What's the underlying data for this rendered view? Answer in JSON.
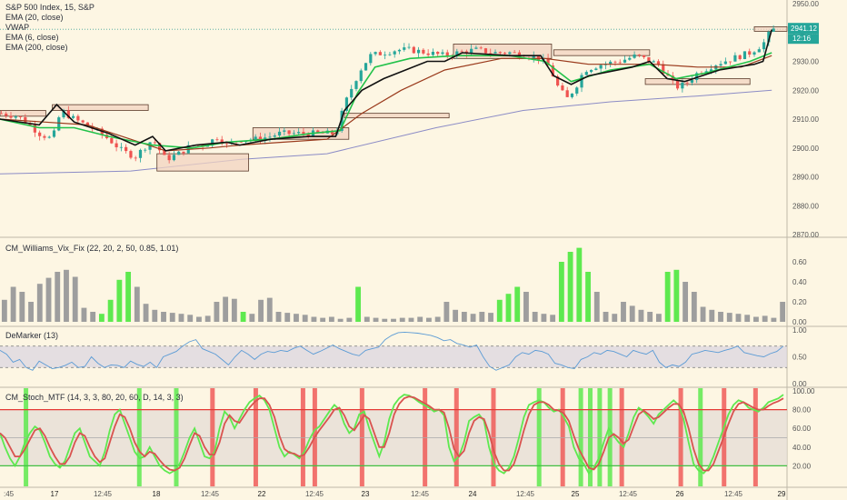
{
  "chart_data": [
    {
      "type": "candlestick",
      "panel": "price",
      "legend": [
        "S&P 500 Index, 15, S&P",
        "EMA (20, close)",
        "VWAP",
        "EMA (6, close)",
        "EMA (200, close)"
      ],
      "ylim": [
        2870,
        2950
      ],
      "y_ticks": [
        "2950.00",
        "2940.00",
        "2930.00",
        "2920.00",
        "2910.00",
        "2900.00",
        "2890.00",
        "2880.00",
        "2870.00"
      ],
      "last_price_label": "2941.12",
      "countdown_label": "12:16",
      "colors": {
        "up": "#26a69a",
        "down": "#ef5350",
        "ema20": "#22c24a",
        "vwap": "#111111",
        "ema6": "#9a3a1c",
        "ema200": "#8c8cc6",
        "zone_fill": "#f2d3c0",
        "zone_stroke": "#5a3a2a"
      },
      "x_ticks": [
        ":45",
        "17",
        "12:45",
        "18",
        "12:45",
        "22",
        "12:45",
        "23",
        "12:45",
        "24",
        "12:45",
        "25",
        "12:45",
        "26",
        "12:45",
        "29"
      ],
      "close_path": [
        [
          0,
          2912
        ],
        [
          8,
          2911
        ],
        [
          12,
          2909
        ],
        [
          18,
          2905
        ],
        [
          24,
          2903
        ],
        [
          28,
          2913
        ],
        [
          34,
          2910
        ],
        [
          42,
          2907
        ],
        [
          50,
          2903
        ],
        [
          56,
          2899
        ],
        [
          62,
          2897
        ],
        [
          70,
          2903
        ],
        [
          76,
          2896
        ],
        [
          82,
          2898
        ],
        [
          88,
          2901
        ],
        [
          94,
          2901
        ],
        [
          100,
          2904
        ],
        [
          104,
          2901
        ],
        [
          110,
          2903
        ],
        [
          118,
          2903
        ],
        [
          124,
          2904
        ],
        [
          128,
          2905
        ],
        [
          134,
          2905
        ],
        [
          142,
          2905
        ],
        [
          150,
          2905
        ],
        [
          154,
          2905
        ],
        [
          158,
          2915
        ],
        [
          162,
          2922
        ],
        [
          166,
          2928
        ],
        [
          170,
          2932
        ],
        [
          176,
          2933
        ],
        [
          182,
          2934
        ],
        [
          188,
          2934
        ],
        [
          196,
          2933
        ],
        [
          204,
          2932
        ],
        [
          210,
          2933
        ],
        [
          218,
          2934
        ],
        [
          226,
          2933
        ],
        [
          234,
          2933
        ],
        [
          242,
          2932
        ],
        [
          248,
          2931
        ],
        [
          252,
          2928
        ],
        [
          256,
          2921
        ],
        [
          260,
          2917
        ],
        [
          264,
          2921
        ],
        [
          268,
          2927
        ],
        [
          276,
          2929
        ],
        [
          284,
          2930
        ],
        [
          292,
          2932
        ],
        [
          298,
          2930
        ],
        [
          302,
          2929
        ],
        [
          306,
          2925
        ],
        [
          310,
          2921
        ],
        [
          314,
          2922
        ],
        [
          320,
          2926
        ],
        [
          328,
          2929
        ],
        [
          336,
          2931
        ],
        [
          344,
          2933
        ],
        [
          350,
          2936
        ],
        [
          354,
          2941
        ]
      ],
      "ema20_path": [
        [
          0,
          2910
        ],
        [
          18,
          2907
        ],
        [
          34,
          2907
        ],
        [
          50,
          2904
        ],
        [
          70,
          2901
        ],
        [
          88,
          2900
        ],
        [
          104,
          2902
        ],
        [
          124,
          2903
        ],
        [
          142,
          2905
        ],
        [
          156,
          2906
        ],
        [
          164,
          2919
        ],
        [
          172,
          2928
        ],
        [
          188,
          2931
        ],
        [
          210,
          2932
        ],
        [
          234,
          2932
        ],
        [
          250,
          2930
        ],
        [
          262,
          2923
        ],
        [
          280,
          2927
        ],
        [
          298,
          2929
        ],
        [
          310,
          2924
        ],
        [
          324,
          2926
        ],
        [
          344,
          2930
        ],
        [
          354,
          2933
        ]
      ],
      "vwap_path": [
        [
          0,
          2910
        ],
        [
          18,
          2908
        ],
        [
          26,
          2915
        ],
        [
          34,
          2909
        ],
        [
          50,
          2905
        ],
        [
          62,
          2901
        ],
        [
          70,
          2904
        ],
        [
          76,
          2899
        ],
        [
          90,
          2901
        ],
        [
          104,
          2902
        ],
        [
          110,
          2901
        ],
        [
          124,
          2903
        ],
        [
          142,
          2904
        ],
        [
          154,
          2904
        ],
        [
          158,
          2913
        ],
        [
          166,
          2920
        ],
        [
          176,
          2924
        ],
        [
          196,
          2930
        ],
        [
          204,
          2930
        ],
        [
          212,
          2933
        ],
        [
          234,
          2932
        ],
        [
          248,
          2932
        ],
        [
          254,
          2925
        ],
        [
          262,
          2922
        ],
        [
          270,
          2925
        ],
        [
          290,
          2928
        ],
        [
          298,
          2930
        ],
        [
          306,
          2924
        ],
        [
          314,
          2923
        ],
        [
          330,
          2927
        ],
        [
          346,
          2929
        ],
        [
          350,
          2930
        ],
        [
          354,
          2941
        ]
      ],
      "ema6_path": [
        [
          0,
          2910
        ],
        [
          20,
          2909
        ],
        [
          40,
          2908
        ],
        [
          60,
          2903
        ],
        [
          76,
          2899
        ],
        [
          96,
          2900
        ],
        [
          110,
          2901
        ],
        [
          130,
          2902
        ],
        [
          150,
          2903
        ],
        [
          166,
          2912
        ],
        [
          184,
          2920
        ],
        [
          204,
          2927
        ],
        [
          230,
          2931
        ],
        [
          250,
          2931
        ],
        [
          270,
          2929
        ],
        [
          300,
          2929
        ],
        [
          320,
          2928
        ],
        [
          340,
          2928
        ],
        [
          354,
          2932
        ]
      ],
      "ema200_path": [
        [
          0,
          2891
        ],
        [
          60,
          2892
        ],
        [
          110,
          2896
        ],
        [
          150,
          2898
        ],
        [
          200,
          2907
        ],
        [
          240,
          2913
        ],
        [
          280,
          2916
        ],
        [
          320,
          2918
        ],
        [
          354,
          2920
        ]
      ],
      "zones": [
        {
          "x0": 0,
          "x1": 21,
          "y0": 2913,
          "y1": 2911
        },
        {
          "x0": 24,
          "x1": 68,
          "y0": 2915,
          "y1": 2913
        },
        {
          "x0": 72,
          "x1": 114,
          "y0": 2898,
          "y1": 2892
        },
        {
          "x0": 116,
          "x1": 160,
          "y0": 2907,
          "y1": 2903
        },
        {
          "x0": 158,
          "x1": 206,
          "y0": 2912,
          "y1": 2911
        },
        {
          "x0": 208,
          "x1": 253,
          "y0": 2936,
          "y1": 2931
        },
        {
          "x0": 254,
          "x1": 298,
          "y0": 2934,
          "y1": 2932
        },
        {
          "x0": 296,
          "x1": 344,
          "y0": 2924,
          "y1": 2922
        },
        {
          "x0": 346,
          "x1": 361,
          "y0": 2942,
          "y1": 2941
        }
      ]
    },
    {
      "type": "bar",
      "panel": "vix_fix",
      "legend": "CM_Williams_Vix_Fix (22, 20, 2, 50, 0.85, 1.01)",
      "ylim": [
        0,
        0.8
      ],
      "y_ticks": [
        "0.60",
        "0.40",
        "0.20",
        "0.00"
      ],
      "colors": {
        "normal": "#9e9e9e",
        "spike": "#5ee94f"
      },
      "values": [
        0.22,
        0.35,
        0.3,
        0.2,
        0.38,
        0.44,
        0.5,
        0.52,
        0.45,
        0.14,
        0.1,
        0.08,
        0.22,
        0.42,
        0.5,
        0.35,
        0.18,
        0.12,
        0.1,
        0.09,
        0.08,
        0.07,
        0.05,
        0.06,
        0.2,
        0.25,
        0.23,
        0.1,
        0.08,
        0.22,
        0.24,
        0.1,
        0.09,
        0.08,
        0.07,
        0.05,
        0.04,
        0.05,
        0.03,
        0.04,
        0.35,
        0.05,
        0.04,
        0.03,
        0.03,
        0.04,
        0.04,
        0.05,
        0.04,
        0.05,
        0.2,
        0.12,
        0.1,
        0.08,
        0.1,
        0.09,
        0.22,
        0.28,
        0.35,
        0.3,
        0.1,
        0.08,
        0.07,
        0.6,
        0.7,
        0.74,
        0.5,
        0.3,
        0.1,
        0.08,
        0.2,
        0.16,
        0.12,
        0.1,
        0.08,
        0.5,
        0.52,
        0.4,
        0.3,
        0.15,
        0.12,
        0.1,
        0.09,
        0.08,
        0.07,
        0.05,
        0.06,
        0.04,
        0.2
      ],
      "spikes": [
        11,
        12,
        13,
        14,
        27,
        40,
        56,
        57,
        58,
        63,
        64,
        65,
        66,
        75,
        76
      ]
    },
    {
      "type": "line",
      "panel": "demarker",
      "legend": "DeMarker (13)",
      "ylim": [
        0,
        1
      ],
      "y_ticks": [
        "1.00",
        "0.50",
        "0.00"
      ],
      "band": [
        0.3,
        0.7
      ],
      "colors": {
        "line": "#5b9bd5",
        "band": "#d8d4e0"
      },
      "values": [
        0.62,
        0.55,
        0.4,
        0.45,
        0.3,
        0.25,
        0.42,
        0.35,
        0.28,
        0.3,
        0.34,
        0.4,
        0.3,
        0.32,
        0.5,
        0.38,
        0.3,
        0.35,
        0.34,
        0.3,
        0.42,
        0.36,
        0.32,
        0.4,
        0.3,
        0.5,
        0.55,
        0.6,
        0.7,
        0.78,
        0.82,
        0.65,
        0.6,
        0.55,
        0.45,
        0.35,
        0.5,
        0.62,
        0.55,
        0.45,
        0.55,
        0.6,
        0.58,
        0.62,
        0.6,
        0.66,
        0.7,
        0.62,
        0.55,
        0.6,
        0.66,
        0.72,
        0.65,
        0.6,
        0.55,
        0.52,
        0.62,
        0.65,
        0.68,
        0.82,
        0.9,
        0.95,
        0.96,
        0.95,
        0.94,
        0.92,
        0.9,
        0.86,
        0.8,
        0.82,
        0.75,
        0.72,
        0.68,
        0.72,
        0.5,
        0.32,
        0.25,
        0.3,
        0.35,
        0.5,
        0.58,
        0.55,
        0.62,
        0.6,
        0.55,
        0.38,
        0.35,
        0.3,
        0.28,
        0.45,
        0.5,
        0.58,
        0.55,
        0.62,
        0.6,
        0.55,
        0.5,
        0.62,
        0.58,
        0.55,
        0.62,
        0.4,
        0.3,
        0.35,
        0.32,
        0.4,
        0.55,
        0.58,
        0.62,
        0.6,
        0.58,
        0.62,
        0.65,
        0.7,
        0.58,
        0.55,
        0.52,
        0.5,
        0.56,
        0.6,
        0.7
      ]
    },
    {
      "type": "line",
      "panel": "stoch",
      "legend": "CM_Stoch_MTF (14, 3, 3, 80, 20, 60, D, 14, 3, 3)",
      "ylim": [
        0,
        100
      ],
      "y_ticks": [
        "100.00",
        "80.00",
        "60.00",
        "40.00",
        "20.00"
      ],
      "levels": {
        "upper": 80,
        "lower": 20
      },
      "colors": {
        "k": "#5ee94f",
        "d": "#d9534f",
        "buy": "#5ee94f",
        "sell": "#ef5350",
        "band": "#e6dfd6"
      },
      "k": [
        55,
        40,
        28,
        20,
        30,
        45,
        55,
        62,
        58,
        45,
        30,
        22,
        18,
        25,
        40,
        55,
        60,
        45,
        30,
        25,
        20,
        35,
        58,
        75,
        80,
        65,
        50,
        35,
        28,
        30,
        40,
        30,
        20,
        15,
        12,
        15,
        22,
        35,
        50,
        60,
        45,
        30,
        28,
        35,
        60,
        78,
        72,
        60,
        70,
        80,
        88,
        92,
        95,
        90,
        80,
        60,
        40,
        30,
        35,
        32,
        28,
        35,
        48,
        58,
        62,
        70,
        78,
        85,
        80,
        65,
        55,
        60,
        75,
        78,
        60,
        45,
        30,
        45,
        70,
        85,
        92,
        96,
        95,
        92,
        88,
        85,
        82,
        78,
        80,
        74,
        40,
        25,
        30,
        45,
        68,
        72,
        75,
        68,
        40,
        22,
        15,
        12,
        18,
        30,
        50,
        72,
        85,
        88,
        90,
        88,
        82,
        78,
        80,
        72,
        62,
        40,
        28,
        22,
        12,
        18,
        28,
        45,
        60,
        52,
        45,
        40,
        55,
        72,
        82,
        78,
        72,
        65,
        75,
        80,
        85,
        90,
        85,
        70,
        45,
        22,
        15,
        12,
        18,
        30,
        45,
        60,
        75,
        85,
        90,
        88,
        82,
        80,
        78,
        82,
        88,
        90,
        92,
        96
      ],
      "d": [
        55,
        50,
        40,
        30,
        30,
        38,
        48,
        58,
        60,
        52,
        40,
        30,
        22,
        22,
        30,
        45,
        55,
        52,
        40,
        30,
        24,
        28,
        45,
        62,
        75,
        72,
        60,
        45,
        35,
        30,
        35,
        33,
        26,
        20,
        16,
        15,
        18,
        28,
        42,
        55,
        52,
        40,
        32,
        32,
        45,
        65,
        74,
        68,
        66,
        74,
        82,
        88,
        92,
        92,
        85,
        72,
        52,
        38,
        34,
        33,
        30,
        32,
        40,
        50,
        58,
        65,
        72,
        80,
        82,
        74,
        62,
        58,
        66,
        74,
        70,
        55,
        40,
        40,
        55,
        75,
        86,
        92,
        94,
        93,
        90,
        87,
        84,
        80,
        80,
        77,
        60,
        38,
        30,
        36,
        55,
        68,
        72,
        70,
        55,
        35,
        22,
        15,
        15,
        22,
        38,
        58,
        75,
        85,
        88,
        88,
        85,
        80,
        79,
        76,
        68,
        52,
        38,
        28,
        18,
        16,
        22,
        35,
        50,
        54,
        50,
        44,
        48,
        62,
        75,
        79,
        75,
        70,
        72,
        77,
        82,
        86,
        86,
        78,
        60,
        38,
        22,
        15,
        15,
        22,
        36,
        50,
        65,
        78,
        86,
        88,
        85,
        82,
        80,
        80,
        84,
        87,
        89,
        92
      ],
      "buy_signals": [
        0.033,
        0.177,
        0.224,
        0.685,
        0.738,
        0.75,
        0.762,
        0.775,
        0.89
      ],
      "sell_signals": [
        0.27,
        0.325,
        0.385,
        0.4,
        0.46,
        0.54,
        0.58,
        0.627,
        0.715,
        0.79,
        0.865,
        0.92,
        0.96
      ]
    }
  ]
}
